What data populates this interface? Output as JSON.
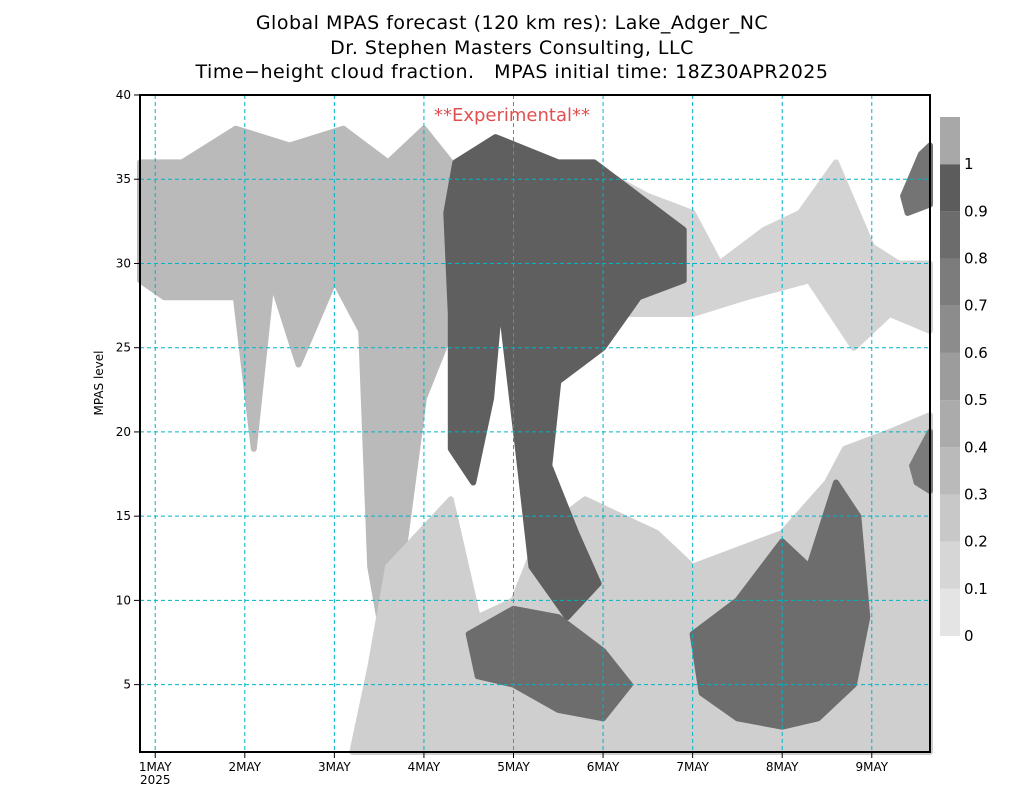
{
  "header": {
    "line1": "Global MPAS forecast (120 km res): Lake_Adger_NC",
    "line2": "Dr. Stephen Masters Consulting, LLC",
    "line3": "Time−height cloud fraction.   MPAS initial time: 18Z30APR2025"
  },
  "annotation": "**Experimental**",
  "chart_data": {
    "type": "heatmap",
    "ylabel": "MPAS level",
    "ylim": [
      1,
      40
    ],
    "y_ticks": [
      5,
      10,
      15,
      20,
      25,
      30,
      35,
      40
    ],
    "x_range_days": [
      0.83,
      9.65
    ],
    "x_ticks": [
      {
        "label": "1MAY",
        "sub": "2025",
        "day": 1
      },
      {
        "label": "2MAY",
        "sub": "",
        "day": 2
      },
      {
        "label": "3MAY",
        "sub": "",
        "day": 3
      },
      {
        "label": "4MAY",
        "sub": "",
        "day": 4
      },
      {
        "label": "5MAY",
        "sub": "",
        "day": 5
      },
      {
        "label": "6MAY",
        "sub": "",
        "day": 6
      },
      {
        "label": "7MAY",
        "sub": "",
        "day": 7
      },
      {
        "label": "8MAY",
        "sub": "",
        "day": 8
      },
      {
        "label": "9MAY",
        "sub": "",
        "day": 9
      }
    ],
    "grid": true,
    "colorbar": {
      "labels": [
        "0",
        "0.1",
        "0.2",
        "0.3",
        "0.4",
        "0.5",
        "0.6",
        "0.7",
        "0.8",
        "0.9",
        "1"
      ],
      "colors": [
        "#e4e4e4",
        "#d6d6d6",
        "#c8c8c8",
        "#bababa",
        "#ababab",
        "#9c9c9c",
        "#8c8c8c",
        "#7c7c7c",
        "#6c6c6c",
        "#5c5c5c",
        "#a8a8a8"
      ]
    },
    "cloud_regions": [
      {
        "name": "main-upper-cloud",
        "level": 0.95,
        "points": [
          [
            4.35,
            36
          ],
          [
            4.8,
            37.5
          ],
          [
            5.5,
            36
          ],
          [
            5.9,
            36
          ],
          [
            6.4,
            34
          ],
          [
            6.9,
            32
          ],
          [
            6.9,
            29
          ],
          [
            6.4,
            28
          ],
          [
            6.0,
            25
          ],
          [
            5.5,
            23
          ],
          [
            5.4,
            18
          ],
          [
            5.7,
            14
          ],
          [
            5.95,
            11
          ],
          [
            5.6,
            9
          ],
          [
            5.2,
            12
          ],
          [
            5.05,
            19
          ],
          [
            4.85,
            28
          ],
          [
            4.75,
            22
          ],
          [
            4.55,
            17
          ],
          [
            4.3,
            19
          ],
          [
            4.3,
            27
          ],
          [
            4.25,
            33
          ]
        ]
      },
      {
        "name": "lower-cloud-6may",
        "level": 0.85,
        "points": [
          [
            4.5,
            8
          ],
          [
            5.0,
            9.5
          ],
          [
            5.5,
            9
          ],
          [
            6.0,
            7
          ],
          [
            6.3,
            5
          ],
          [
            6.0,
            3
          ],
          [
            5.5,
            3.5
          ],
          [
            5.0,
            5
          ],
          [
            4.6,
            5.5
          ]
        ]
      },
      {
        "name": "lower-cloud-7-8may",
        "level": 0.85,
        "points": [
          [
            7.0,
            8
          ],
          [
            7.5,
            10
          ],
          [
            8.0,
            13.5
          ],
          [
            8.3,
            12
          ],
          [
            8.6,
            17
          ],
          [
            8.85,
            15
          ],
          [
            8.95,
            9
          ],
          [
            8.8,
            5
          ],
          [
            8.4,
            3
          ],
          [
            8.0,
            2.5
          ],
          [
            7.5,
            3
          ],
          [
            7.1,
            4.5
          ]
        ]
      },
      {
        "name": "upper-right-cloud",
        "level": 0.8,
        "points": [
          [
            9.35,
            34
          ],
          [
            9.55,
            36.5
          ],
          [
            9.65,
            37
          ],
          [
            9.65,
            33.5
          ],
          [
            9.4,
            33
          ]
        ]
      },
      {
        "name": "mid-right-cloud",
        "level": 0.75,
        "points": [
          [
            9.45,
            18
          ],
          [
            9.65,
            20
          ],
          [
            9.65,
            16.5
          ],
          [
            9.5,
            17
          ]
        ]
      }
    ],
    "haze_regions": [
      {
        "name": "upper-haze-west",
        "level": 0.3,
        "points": [
          [
            0.83,
            36
          ],
          [
            1.3,
            36
          ],
          [
            1.9,
            38
          ],
          [
            2.5,
            37
          ],
          [
            3.1,
            38
          ],
          [
            3.6,
            36
          ],
          [
            4.0,
            38
          ],
          [
            4.3,
            36
          ],
          [
            4.3,
            26
          ],
          [
            4.0,
            22
          ],
          [
            3.8,
            14
          ],
          [
            3.6,
            6
          ],
          [
            3.4,
            12
          ],
          [
            3.3,
            26
          ],
          [
            3.0,
            29
          ],
          [
            2.6,
            24
          ],
          [
            2.3,
            29
          ],
          [
            2.1,
            19
          ],
          [
            1.9,
            28
          ],
          [
            1.5,
            28
          ],
          [
            1.1,
            28
          ],
          [
            0.83,
            29
          ]
        ]
      },
      {
        "name": "broad-haze",
        "level": 0.15,
        "points": [
          [
            3.6,
            12
          ],
          [
            4.3,
            16
          ],
          [
            4.6,
            9
          ],
          [
            5.0,
            10
          ],
          [
            5.3,
            14
          ],
          [
            5.8,
            16
          ],
          [
            6.2,
            15
          ],
          [
            6.6,
            14
          ],
          [
            7.0,
            12
          ],
          [
            7.5,
            13
          ],
          [
            8.0,
            14
          ],
          [
            8.5,
            17
          ],
          [
            8.7,
            19
          ],
          [
            9.2,
            20
          ],
          [
            9.65,
            21
          ],
          [
            9.65,
            1
          ],
          [
            3.2,
            1
          ],
          [
            3.4,
            6
          ]
        ]
      },
      {
        "name": "upper-haze-east",
        "level": 0.12,
        "points": [
          [
            5.8,
            36
          ],
          [
            6.5,
            34
          ],
          [
            7.0,
            33
          ],
          [
            7.3,
            30
          ],
          [
            7.8,
            32
          ],
          [
            8.2,
            33
          ],
          [
            8.6,
            36
          ],
          [
            9.0,
            31
          ],
          [
            9.3,
            30
          ],
          [
            9.65,
            30
          ],
          [
            9.65,
            26
          ],
          [
            9.2,
            27
          ],
          [
            8.8,
            25
          ],
          [
            8.3,
            29
          ],
          [
            7.6,
            28
          ],
          [
            7.0,
            27
          ],
          [
            6.2,
            27
          ]
        ]
      }
    ]
  }
}
